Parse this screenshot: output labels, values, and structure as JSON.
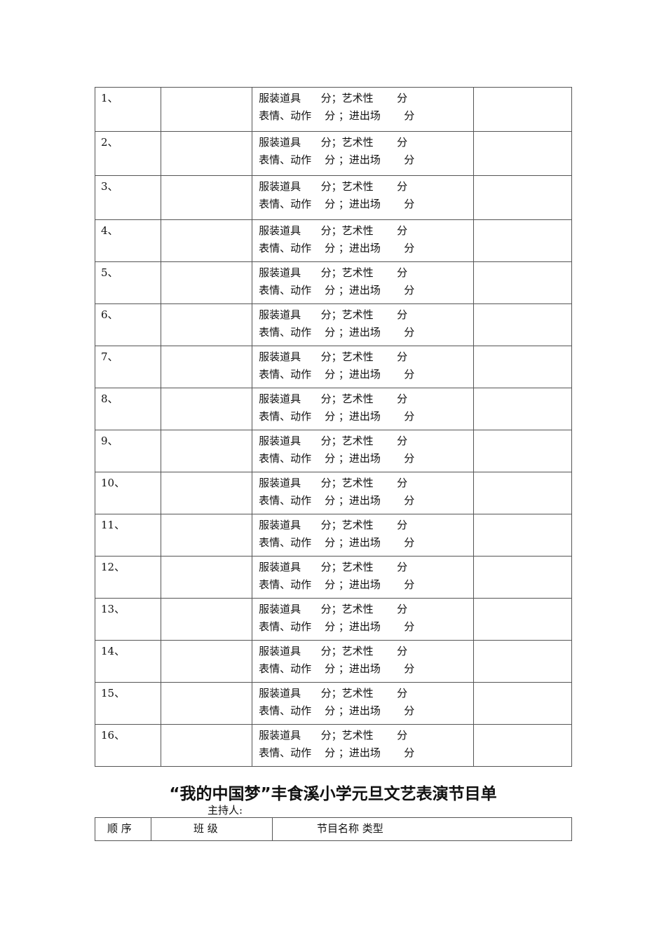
{
  "score_table": {
    "line1": "服装道具      分；艺术性       分",
    "line2": "表情、动作    分 ；进出场       分",
    "rows": [
      "1、",
      "2、",
      "3、",
      "4、",
      "5、",
      "6、",
      "7、",
      "8、",
      "9、",
      "10、",
      "11、",
      "12、",
      "13、",
      "14、",
      "15、",
      "16、"
    ]
  },
  "program": {
    "title": "“我的中国梦”丰食溪小学元旦文艺表演节目单",
    "host_label": "主持人:",
    "headers": [
      "顺 序",
      "班  级",
      "节目名称 类型"
    ]
  }
}
